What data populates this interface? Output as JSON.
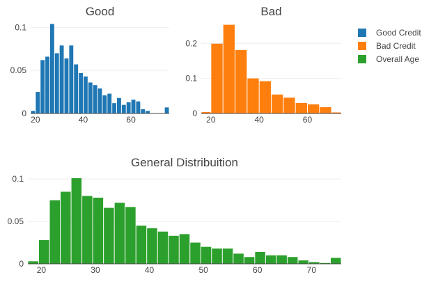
{
  "colors": {
    "good": "#1f77b4",
    "bad": "#ff7f0e",
    "overall": "#2ca02c",
    "grid": "#eeeeee",
    "text": "#444444"
  },
  "legend": {
    "placement": "top-right",
    "items": [
      {
        "label": "Good Credit",
        "color": "#1f77b4"
      },
      {
        "label": "Bad Credit",
        "color": "#ff7f0e"
      },
      {
        "label": "Overall Age",
        "color": "#2ca02c"
      }
    ]
  },
  "chart_data": [
    {
      "type": "bar",
      "title": "Good",
      "series_name": "Good Credit",
      "color": "#1f77b4",
      "xlim": [
        18,
        76
      ],
      "ylim": [
        0,
        0.11
      ],
      "xticks": [
        20,
        40,
        60
      ],
      "yticks": [
        0,
        0.05,
        0.1
      ],
      "ytick_labels": [
        "0",
        "0.05",
        "0.1"
      ],
      "bin_width": 2,
      "bins_start": [
        18,
        20,
        22,
        24,
        26,
        28,
        30,
        32,
        34,
        36,
        38,
        40,
        42,
        44,
        46,
        48,
        50,
        52,
        54,
        56,
        58,
        60,
        62,
        64,
        66,
        68,
        70,
        72,
        74
      ],
      "values": [
        0.003,
        0.025,
        0.062,
        0.066,
        0.104,
        0.07,
        0.079,
        0.064,
        0.079,
        0.057,
        0.047,
        0.043,
        0.036,
        0.033,
        0.029,
        0.021,
        0.023,
        0.012,
        0.018,
        0.01,
        0.013,
        0.016,
        0.014,
        0.005,
        0.003,
        0.0,
        0.0,
        0.0,
        0.007
      ]
    },
    {
      "type": "bar",
      "title": "Bad",
      "series_name": "Bad Credit",
      "color": "#ff7f0e",
      "xlim": [
        16,
        74
      ],
      "ylim": [
        0,
        0.27
      ],
      "xticks": [
        20,
        40,
        60
      ],
      "yticks": [
        0,
        0.1,
        0.2
      ],
      "ytick_labels": [
        "0",
        "0.1",
        "0.2"
      ],
      "bin_width": 5,
      "bins_start": [
        15,
        20,
        25,
        30,
        35,
        40,
        45,
        50,
        55,
        60,
        65,
        70
      ],
      "values": [
        0.004,
        0.199,
        0.253,
        0.181,
        0.1,
        0.092,
        0.054,
        0.045,
        0.03,
        0.026,
        0.018,
        0.003
      ]
    },
    {
      "type": "bar",
      "title": "General Distribuition",
      "series_name": "Overall Age",
      "color": "#2ca02c",
      "xlim": [
        17.5,
        75.5
      ],
      "ylim": [
        0,
        0.11
      ],
      "xticks": [
        20,
        30,
        40,
        50,
        60,
        70
      ],
      "yticks": [
        0,
        0.05,
        0.1
      ],
      "ytick_labels": [
        "0",
        "0.05",
        "0.1"
      ],
      "bin_width": 2,
      "bins_start": [
        17.5,
        19.5,
        21.5,
        23.5,
        25.5,
        27.5,
        29.5,
        31.5,
        33.5,
        35.5,
        37.5,
        39.5,
        41.5,
        43.5,
        45.5,
        47.5,
        49.5,
        51.5,
        53.5,
        55.5,
        57.5,
        59.5,
        61.5,
        63.5,
        65.5,
        67.5,
        69.5,
        71.5,
        73.5
      ],
      "values": [
        0.003,
        0.028,
        0.075,
        0.085,
        0.101,
        0.08,
        0.078,
        0.066,
        0.072,
        0.067,
        0.045,
        0.042,
        0.038,
        0.033,
        0.035,
        0.025,
        0.02,
        0.018,
        0.018,
        0.012,
        0.008,
        0.014,
        0.01,
        0.01,
        0.008,
        0.004,
        0.002,
        0.001,
        0.007
      ]
    }
  ]
}
